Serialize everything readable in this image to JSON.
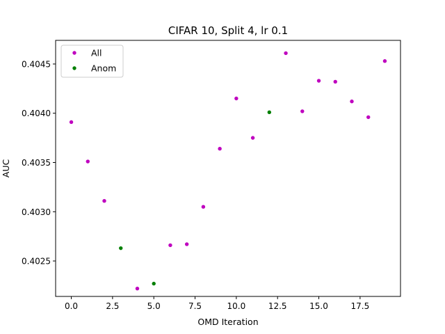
{
  "chart_data": {
    "type": "scatter",
    "title": "CIFAR 10, Split 4, lr 0.1",
    "xlabel": "OMD Iteration",
    "ylabel": "AUC",
    "xlim": [
      -0.95,
      19.95
    ],
    "ylim": [
      0.40214,
      0.40474
    ],
    "xticks": [
      0.0,
      2.5,
      5.0,
      7.5,
      10.0,
      12.5,
      15.0,
      17.5
    ],
    "xtick_labels": [
      "0.0",
      "2.5",
      "5.0",
      "7.5",
      "10.0",
      "12.5",
      "15.0",
      "17.5"
    ],
    "yticks": [
      0.4025,
      0.403,
      0.4035,
      0.404,
      0.4045
    ],
    "ytick_labels": [
      "0.4025",
      "0.4030",
      "0.4035",
      "0.4040",
      "0.4045"
    ],
    "grid": false,
    "legend_position": "top-left",
    "series": [
      {
        "name": "All",
        "color": "#bf00bf",
        "points": [
          {
            "x": 0,
            "y": 0.40391
          },
          {
            "x": 1,
            "y": 0.40351
          },
          {
            "x": 2,
            "y": 0.40311
          },
          {
            "x": 4,
            "y": 0.40222
          },
          {
            "x": 6,
            "y": 0.40266
          },
          {
            "x": 7,
            "y": 0.40267
          },
          {
            "x": 8,
            "y": 0.40305
          },
          {
            "x": 9,
            "y": 0.40364
          },
          {
            "x": 10,
            "y": 0.40415
          },
          {
            "x": 11,
            "y": 0.40375
          },
          {
            "x": 13,
            "y": 0.40461
          },
          {
            "x": 14,
            "y": 0.40402
          },
          {
            "x": 15,
            "y": 0.40433
          },
          {
            "x": 16,
            "y": 0.40432
          },
          {
            "x": 17,
            "y": 0.40412
          },
          {
            "x": 18,
            "y": 0.40396
          },
          {
            "x": 19,
            "y": 0.40453
          }
        ]
      },
      {
        "name": "Anom",
        "color": "#007f00",
        "points": [
          {
            "x": 3,
            "y": 0.40263
          },
          {
            "x": 5,
            "y": 0.40227
          },
          {
            "x": 12,
            "y": 0.40401
          }
        ]
      }
    ]
  }
}
